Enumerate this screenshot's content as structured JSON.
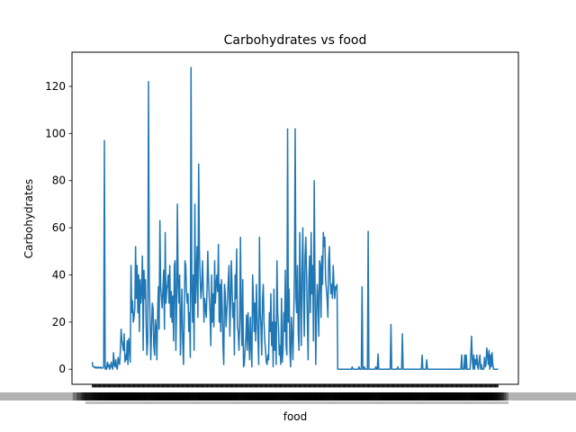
{
  "chart_data": {
    "type": "line",
    "title": "Carbohydrates vs food",
    "xlabel": "food",
    "ylabel": "Carbohydrates",
    "ylim": [
      -6.4,
      134.5
    ],
    "yticks": [
      0,
      20,
      40,
      60,
      80,
      100,
      120
    ],
    "grid": false,
    "line_color": "#1f77b4",
    "n_points": 550,
    "x_tick_labels": "overlapping, illegible food names",
    "series": [
      {
        "values": [
          3,
          1,
          1,
          1,
          0.5,
          1,
          0.5,
          0.5,
          1,
          0.5,
          0.5,
          1,
          0.5,
          0.5,
          0.5,
          1,
          97,
          0,
          1,
          0,
          3,
          1,
          2,
          0,
          1,
          3,
          1,
          0,
          7,
          2,
          1,
          4,
          1,
          0,
          5,
          3,
          2,
          8,
          17,
          12,
          10,
          8,
          15,
          3,
          6,
          4,
          12,
          2,
          13,
          9,
          3,
          44,
          24,
          29,
          20,
          22,
          26,
          52,
          30,
          44,
          24,
          40,
          16,
          38,
          28,
          34,
          48,
          8,
          42,
          30,
          38,
          18,
          6,
          12,
          122,
          38,
          22,
          4,
          16,
          28,
          26,
          10,
          6,
          21,
          18,
          4,
          23,
          35,
          17,
          63,
          35,
          30,
          26,
          34,
          42,
          17,
          58,
          28,
          34,
          36,
          40,
          28,
          44,
          22,
          33,
          20,
          31,
          12,
          44,
          46,
          8,
          26,
          70,
          37,
          28,
          40,
          6,
          22,
          34,
          12,
          2,
          20,
          46,
          44,
          33,
          28,
          32,
          16,
          24,
          5,
          128,
          34,
          20,
          40,
          8,
          70,
          28,
          40,
          52,
          22,
          87,
          50,
          38,
          30,
          34,
          46,
          36,
          20,
          30,
          26,
          22,
          34,
          50,
          38,
          30,
          24,
          10,
          40,
          20,
          32,
          18,
          46,
          28,
          36,
          40,
          33,
          53,
          20,
          36,
          16,
          38,
          26,
          10,
          2,
          36,
          32,
          18,
          24,
          30,
          38,
          44,
          14,
          28,
          46,
          34,
          22,
          28,
          6,
          40,
          30,
          51,
          18,
          16,
          8,
          20,
          56,
          22,
          10,
          38,
          1,
          2,
          8,
          13,
          23,
          8,
          24,
          14,
          4,
          22,
          10,
          1,
          40,
          30,
          16,
          28,
          12,
          36,
          22,
          14,
          2,
          56,
          24,
          18,
          6,
          30,
          36,
          20,
          12,
          8,
          3,
          2,
          6,
          4,
          24,
          16,
          32,
          10,
          20,
          1,
          34,
          8,
          20,
          2,
          46,
          24,
          18,
          6,
          10,
          2,
          30,
          3,
          8,
          24,
          16,
          42,
          10,
          6,
          102,
          20,
          34,
          8,
          1,
          22,
          15,
          4,
          20,
          40,
          102,
          30,
          24,
          44,
          16,
          8,
          58,
          34,
          10,
          42,
          60,
          30,
          14,
          48,
          56,
          40,
          22,
          4,
          38,
          48,
          24,
          58,
          32,
          44,
          12,
          80,
          40,
          2,
          22,
          36,
          30,
          14,
          46,
          44,
          22,
          48,
          36,
          58,
          52,
          56,
          38,
          34,
          30,
          22,
          46,
          52,
          38,
          32,
          36,
          30,
          44,
          36,
          30,
          35,
          34,
          36,
          0,
          0,
          0,
          0,
          0,
          0,
          0,
          0,
          0,
          0,
          0,
          0,
          0,
          0,
          0,
          0,
          0,
          0,
          0,
          1,
          0,
          0,
          0,
          0,
          0,
          0,
          0,
          0,
          1,
          0,
          0,
          0,
          35,
          0,
          0,
          1,
          0,
          0,
          0,
          0,
          58.5,
          0,
          0,
          0,
          0,
          0,
          0,
          0,
          0,
          0,
          1,
          0,
          0,
          6.5,
          0,
          0,
          0,
          0,
          0,
          0,
          0,
          0,
          0,
          0,
          0,
          0,
          0,
          0,
          0,
          0,
          19,
          0,
          0,
          0,
          0,
          0,
          0,
          0,
          0,
          1,
          0,
          0,
          0,
          0,
          0,
          15,
          0,
          0,
          0,
          0,
          0,
          0,
          0,
          0,
          0,
          0,
          0,
          0,
          0,
          0,
          0,
          0,
          0,
          0,
          0,
          0,
          0,
          0,
          0,
          0,
          0,
          6,
          0,
          0,
          0,
          0,
          0,
          4,
          0,
          0,
          0,
          0,
          0,
          0,
          0,
          0,
          0,
          0,
          0,
          0,
          0,
          0,
          0,
          0,
          0,
          0,
          0,
          0,
          0,
          0,
          0,
          0,
          0,
          0,
          0,
          0,
          0,
          0,
          0,
          0,
          0,
          0,
          0,
          0,
          0,
          0,
          0,
          0,
          0,
          0,
          0,
          0,
          0,
          6,
          0,
          0,
          0,
          6,
          0,
          6,
          0,
          0,
          0,
          0,
          0,
          6,
          14,
          4,
          0,
          6,
          0,
          4,
          2,
          6,
          1,
          0,
          4,
          6,
          0,
          2,
          0,
          0,
          0,
          5,
          1,
          2,
          9,
          6,
          2,
          8,
          0,
          6,
          1,
          7,
          2,
          0,
          0,
          0,
          0,
          0,
          0,
          0
        ]
      }
    ]
  }
}
